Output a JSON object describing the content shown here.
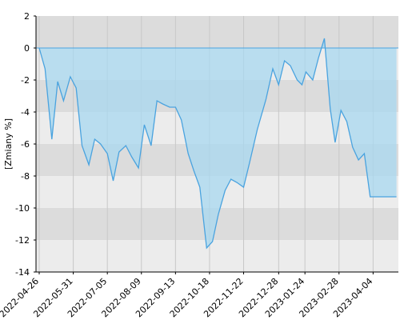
{
  "chart_data": {
    "type": "area",
    "title": "",
    "ylabel": "[Zmiany %]",
    "xlabel": "",
    "ylim": [
      -14,
      2
    ],
    "yticks": [
      2,
      0,
      -2,
      -4,
      -6,
      -8,
      -10,
      -12,
      -14
    ],
    "x_tick_labels": [
      "2022-04-26",
      "2022-05-31",
      "2022-07-05",
      "2022-08-09",
      "2022-09-13",
      "2022-10-18",
      "2022-11-22",
      "2022-12-28",
      "2023-01-24",
      "2023-02-28",
      "2023-04-04"
    ],
    "grid": true,
    "legend": "none",
    "colors": {
      "band_dark": "#dcdcdc",
      "band_light": "#ececec",
      "fill": "#a8d8f0",
      "line": "#4aa3df",
      "gridline": "#c8c8c8",
      "axis": "#000000"
    },
    "series": [
      {
        "x": [
          "2022-04-26",
          "2022-05-02",
          "2022-05-09",
          "2022-05-15",
          "2022-05-21",
          "2022-05-28",
          "2022-06-03",
          "2022-06-09",
          "2022-06-16",
          "2022-06-22",
          "2022-06-28",
          "2022-07-05",
          "2022-07-11",
          "2022-07-17",
          "2022-07-24",
          "2022-07-30",
          "2022-08-06",
          "2022-08-12",
          "2022-08-19",
          "2022-08-25",
          "2022-08-31",
          "2022-09-07",
          "2022-09-13",
          "2022-09-19",
          "2022-09-26",
          "2022-10-02",
          "2022-10-08",
          "2022-10-15",
          "2022-10-21",
          "2022-10-27",
          "2022-11-03",
          "2022-11-09",
          "2022-11-15",
          "2022-11-22",
          "2022-11-28",
          "2022-12-06",
          "2022-12-15",
          "2022-12-22",
          "2022-12-28",
          "2023-01-03",
          "2023-01-09",
          "2023-01-16",
          "2023-01-21",
          "2023-01-25",
          "2023-02-01",
          "2023-02-07",
          "2023-02-13",
          "2023-02-19",
          "2023-02-24",
          "2023-03-02",
          "2023-03-08",
          "2023-03-14",
          "2023-03-20",
          "2023-03-26",
          "2023-04-01",
          "2023-04-07",
          "2023-04-13",
          "2023-04-19",
          "2023-04-25",
          "2023-04-28"
        ],
        "values": [
          0.0,
          -1.3,
          -5.7,
          -2.1,
          -3.3,
          -1.8,
          -2.5,
          -6.1,
          -7.3,
          -5.7,
          -6.0,
          -6.6,
          -8.3,
          -6.5,
          -6.1,
          -6.8,
          -7.5,
          -4.8,
          -6.1,
          -3.3,
          -3.5,
          -3.7,
          -3.7,
          -4.5,
          -6.6,
          -7.7,
          -8.7,
          -12.5,
          -12.1,
          -10.4,
          -8.9,
          -8.2,
          -8.4,
          -8.7,
          -7.2,
          -5.1,
          -3.2,
          -1.3,
          -2.3,
          -0.8,
          -1.1,
          -2.0,
          -2.3,
          -1.5,
          -2.0,
          -0.6,
          0.6,
          -3.8,
          -5.9,
          -3.9,
          -4.6,
          -6.2,
          -7.0,
          -6.6,
          -9.3,
          -9.3,
          -9.3,
          -9.3,
          -9.3,
          -9.3
        ]
      }
    ]
  }
}
